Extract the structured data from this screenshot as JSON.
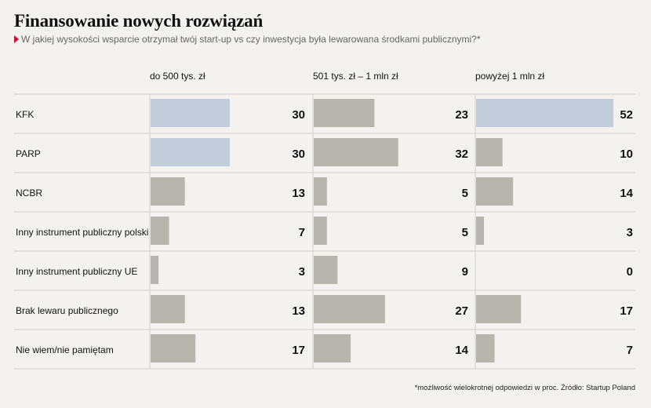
{
  "title": "Finansowanie nowych rozwiązań",
  "subtitle": "W jakiej wysokości wsparcie otrzymał twój start-up vs czy inwestycja była lewarowana środkami publicznymi?*",
  "footnote": "*możliwość wielokrotnej odpowiedzi w proc. Źródło: Startup Poland",
  "colors": {
    "highlight": "#c3ccda",
    "default": "#b7b5ad",
    "background": "#f4f2ee",
    "accent": "#c8102e"
  },
  "chart_data": {
    "type": "bar",
    "orientation": "horizontal",
    "categories": [
      "KFK",
      "PARP",
      "NCBR",
      "Inny instrument publiczny polski",
      "Inny instrument publiczny UE",
      "Brak lewaru publicznego",
      "Nie wiem/nie pamiętam"
    ],
    "series": [
      {
        "name": "do 500 tys. zł",
        "values": [
          30,
          30,
          13,
          7,
          3,
          13,
          17
        ],
        "highlight": [
          "KFK",
          "PARP"
        ]
      },
      {
        "name": "501 tys. zł – 1 mln zł",
        "values": [
          23,
          32,
          5,
          5,
          9,
          27,
          14
        ],
        "highlight": []
      },
      {
        "name": "powyżej 1 mln zł",
        "values": [
          52,
          10,
          14,
          3,
          0,
          17,
          7
        ],
        "highlight": [
          "KFK"
        ]
      }
    ],
    "xlim": [
      0,
      52
    ],
    "grid": true
  }
}
